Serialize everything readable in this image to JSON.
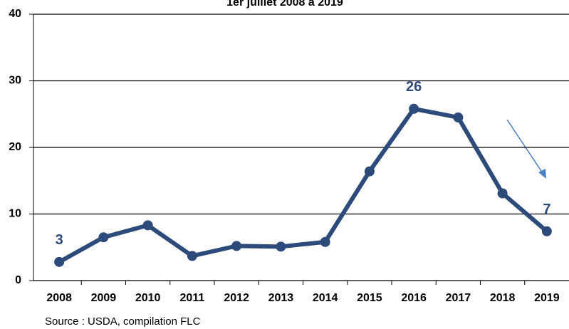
{
  "chart_data": {
    "type": "line",
    "title": "1er juillet 2008 à 2019",
    "source": "Source : USDA, compilation FLC",
    "categories": [
      "2008",
      "2009",
      "2010",
      "2011",
      "2012",
      "2013",
      "2014",
      "2015",
      "2016",
      "2017",
      "2018",
      "2019"
    ],
    "series": [
      {
        "name": "",
        "color": "#2c4a7a",
        "values": [
          2.8,
          6.5,
          8.3,
          3.7,
          5.2,
          5.1,
          5.8,
          16.4,
          25.8,
          24.5,
          13.1,
          7.4
        ],
        "value_labels": [
          "3",
          null,
          null,
          null,
          null,
          null,
          null,
          null,
          "26",
          null,
          null,
          "7"
        ]
      }
    ],
    "ylim": [
      0,
      40
    ],
    "yticks": [
      0,
      10,
      20,
      30,
      40
    ],
    "grid": true
  }
}
